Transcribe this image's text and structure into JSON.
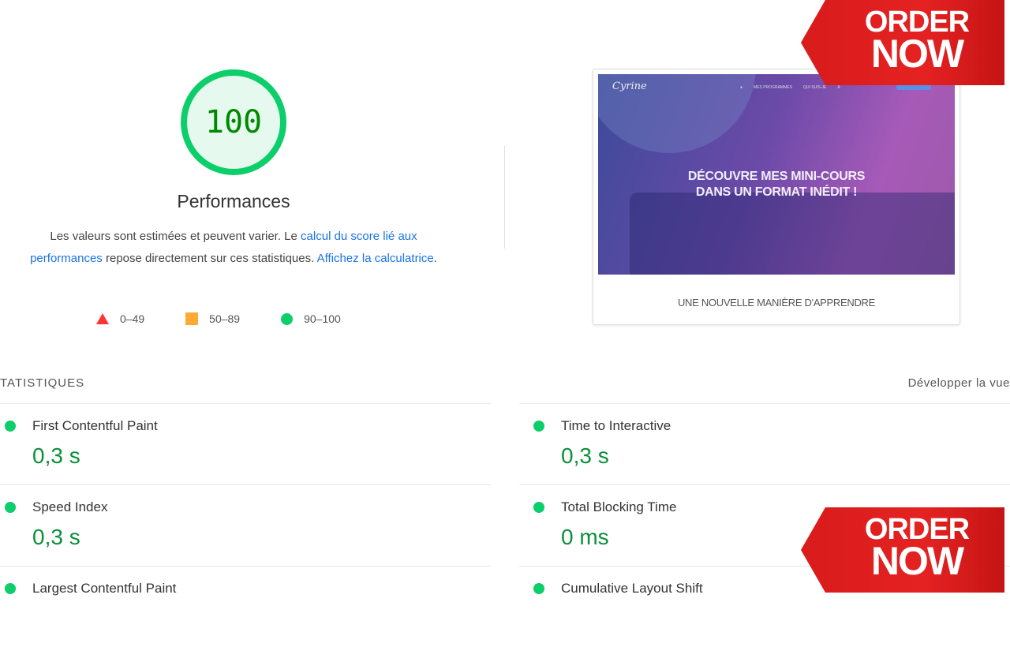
{
  "score": {
    "value": "100",
    "title": "Performances",
    "color": "#0cce6b"
  },
  "description": {
    "t1": "Les valeurs sont estimées et peuvent varier. Le ",
    "link1": "calcul du score lié aux performances",
    "t2": " repose directement sur ces statistiques. ",
    "link2": "Affichez la calculatrice",
    "t3": "."
  },
  "legend": [
    {
      "icon": "triangle-icon",
      "label": "0–49",
      "color": "#ff3333"
    },
    {
      "icon": "square-icon",
      "label": "50–89",
      "color": "#ffaa33"
    },
    {
      "icon": "circle-icon",
      "label": "90–100",
      "color": "#0cce6b"
    }
  ],
  "screenshot": {
    "logo": "Cyrine",
    "nav": [
      "●",
      "MES PROGRAMMES",
      "QUI SUIS-JE",
      "À"
    ],
    "headline1": "DÉCOUVRE MES MINI-COURS",
    "headline2": "DANS UN FORMAT INÉDIT !",
    "section_title": "UNE NOUVELLE MANIÈRE D'APPRENDRE"
  },
  "stats": {
    "heading": "TATISTIQUES",
    "expand": "Développer la vue"
  },
  "metrics": [
    {
      "name": "First Contentful Paint",
      "value": "0,3 s"
    },
    {
      "name": "Time to Interactive",
      "value": "0,3 s"
    },
    {
      "name": "Speed Index",
      "value": "0,3 s"
    },
    {
      "name": "Total Blocking Time",
      "value": "0 ms"
    },
    {
      "name": "Largest Contentful Paint",
      "value": ""
    },
    {
      "name": "Cumulative Layout Shift",
      "value": ""
    }
  ],
  "ribbon": {
    "line1": "ORDER",
    "line2": "NOW"
  }
}
